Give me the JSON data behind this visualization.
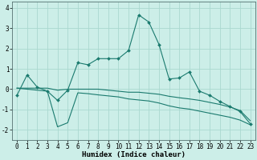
{
  "xlabel": "Humidex (Indice chaleur)",
  "background_color": "#cceee8",
  "grid_color": "#aad8d0",
  "line_color": "#1a7a6e",
  "x_values": [
    0,
    1,
    2,
    3,
    4,
    5,
    6,
    7,
    8,
    9,
    10,
    11,
    12,
    13,
    14,
    15,
    16,
    17,
    18,
    19,
    20,
    21,
    22,
    23
  ],
  "line1": [
    -0.3,
    0.7,
    0.1,
    -0.1,
    -0.55,
    -0.05,
    1.3,
    1.2,
    1.5,
    1.5,
    1.5,
    1.9,
    3.65,
    3.3,
    2.2,
    0.5,
    0.55,
    0.85,
    -0.1,
    -0.3,
    -0.6,
    -0.85,
    -1.1,
    -1.7
  ],
  "line2_upper": [
    0.05,
    0.05,
    0.05,
    0.05,
    -0.05,
    0.0,
    0.0,
    0.0,
    0.0,
    -0.05,
    -0.1,
    -0.15,
    -0.15,
    -0.2,
    -0.25,
    -0.35,
    -0.42,
    -0.48,
    -0.55,
    -0.65,
    -0.75,
    -0.88,
    -1.05,
    -1.55
  ],
  "line2_lower": [
    0.05,
    0.0,
    -0.05,
    -0.1,
    -1.85,
    -1.65,
    -0.18,
    -0.22,
    -0.28,
    -0.33,
    -0.38,
    -0.48,
    -0.53,
    -0.58,
    -0.68,
    -0.82,
    -0.92,
    -0.98,
    -1.08,
    -1.18,
    -1.28,
    -1.38,
    -1.52,
    -1.75
  ],
  "ylim": [
    -2.5,
    4.3
  ],
  "xlim": [
    -0.5,
    23.5
  ],
  "yticks": [
    -2,
    -1,
    0,
    1,
    2,
    3,
    4
  ],
  "xticks": [
    0,
    1,
    2,
    3,
    4,
    5,
    6,
    7,
    8,
    9,
    10,
    11,
    12,
    13,
    14,
    15,
    16,
    17,
    18,
    19,
    20,
    21,
    22,
    23
  ],
  "markersize": 2.0,
  "linewidth": 0.8,
  "xlabel_fontsize": 6.5,
  "tick_fontsize": 5.5,
  "xlabel_bold": true
}
